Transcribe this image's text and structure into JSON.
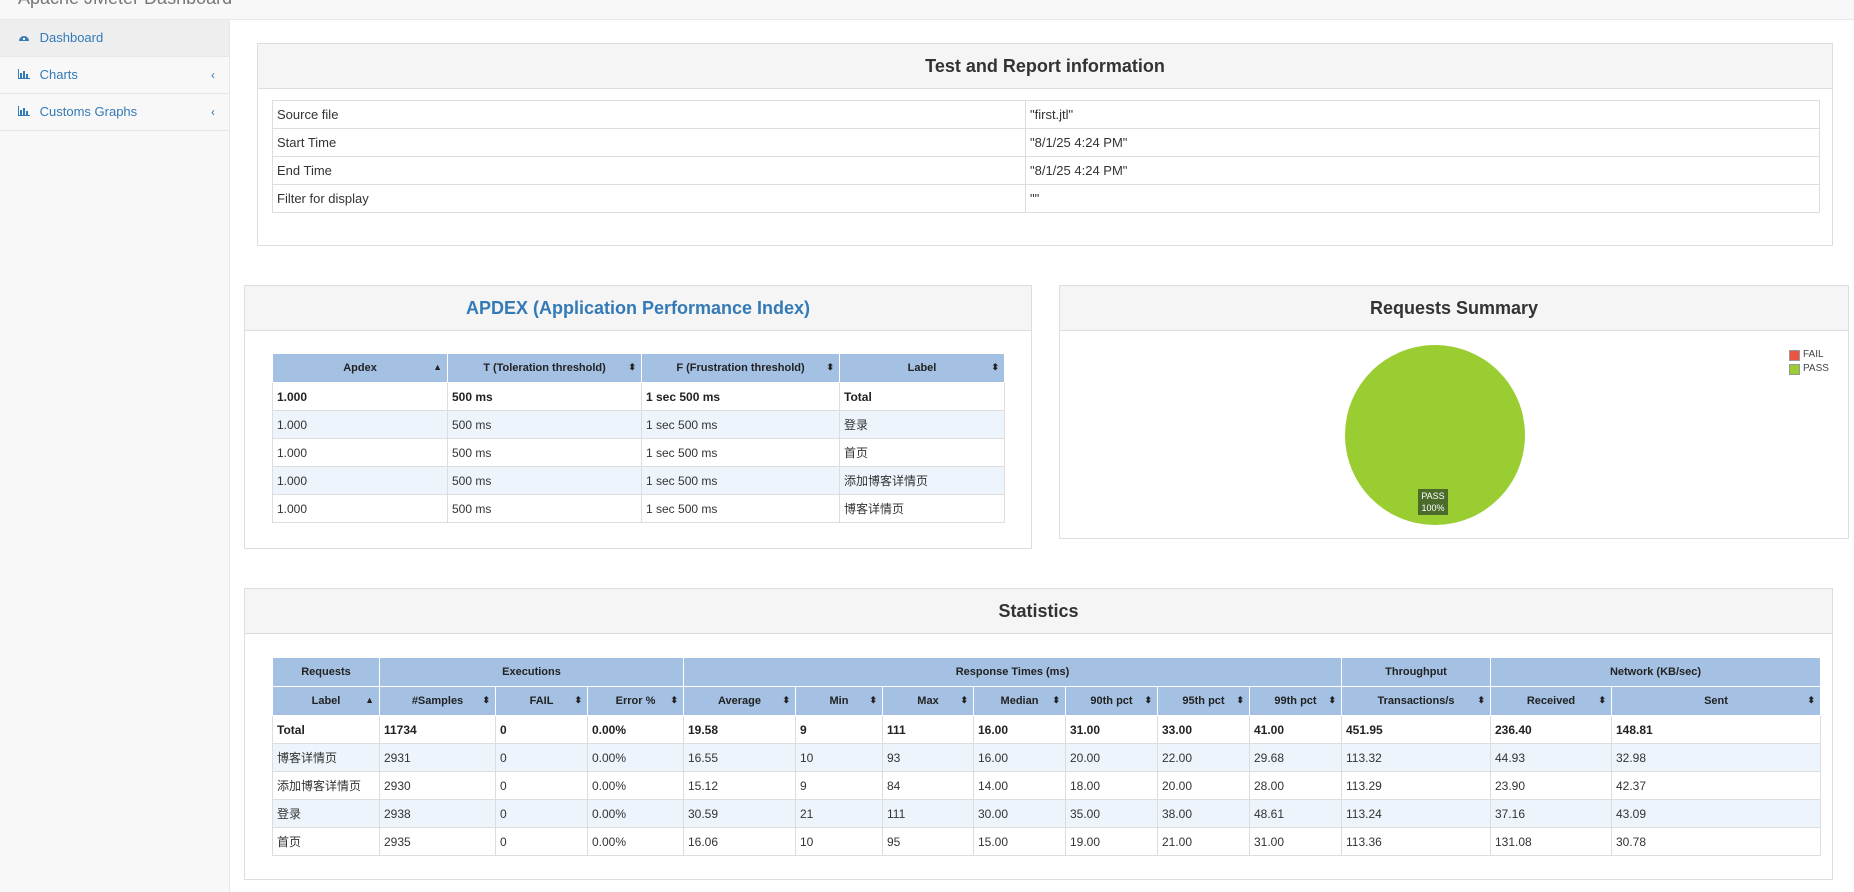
{
  "app": {
    "title": "Apache JMeter Dashboard"
  },
  "sidebar": {
    "items": [
      {
        "label": "Dashboard",
        "icon": "dashboard-icon"
      },
      {
        "label": "Charts",
        "icon": "bar-chart-icon"
      },
      {
        "label": "Customs Graphs",
        "icon": "bar-chart-icon"
      }
    ]
  },
  "test_info": {
    "title": "Test and Report information",
    "rows": [
      {
        "key": "Source file",
        "value": "\"first.jtl\""
      },
      {
        "key": "Start Time",
        "value": "\"8/1/25 4:24 PM\""
      },
      {
        "key": "End Time",
        "value": "\"8/1/25 4:24 PM\""
      },
      {
        "key": "Filter for display",
        "value": "\"\""
      }
    ]
  },
  "apdex": {
    "title": "APDEX (Application Performance Index)",
    "headers": [
      "Apdex",
      "T (Toleration threshold)",
      "F (Frustration threshold)",
      "Label"
    ],
    "rows": [
      [
        "1.000",
        "500 ms",
        "1 sec 500 ms",
        "Total"
      ],
      [
        "1.000",
        "500 ms",
        "1 sec 500 ms",
        "登录"
      ],
      [
        "1.000",
        "500 ms",
        "1 sec 500 ms",
        "首页"
      ],
      [
        "1.000",
        "500 ms",
        "1 sec 500 ms",
        "添加博客详情页"
      ],
      [
        "1.000",
        "500 ms",
        "1 sec 500 ms",
        "博客详情页"
      ]
    ]
  },
  "requests_summary": {
    "title": "Requests Summary",
    "pie_label_name": "PASS",
    "pie_label_pct": "100%",
    "colors": {
      "fail": "#e8563f",
      "pass": "#9acd32"
    }
  },
  "chart_data": {
    "type": "pie",
    "title": "Requests Summary",
    "categories": [
      "FAIL",
      "PASS"
    ],
    "values": [
      0,
      100
    ],
    "legend_position": "top-right"
  },
  "statistics": {
    "title": "Statistics",
    "groups": [
      "Requests",
      "Executions",
      "Response Times (ms)",
      "Throughput",
      "Network (KB/sec)"
    ],
    "headers": [
      "Label",
      "#Samples",
      "FAIL",
      "Error %",
      "Average",
      "Min",
      "Max",
      "Median",
      "90th pct",
      "95th pct",
      "99th pct",
      "Transactions/s",
      "Received",
      "Sent"
    ],
    "rows": [
      [
        "Total",
        "11734",
        "0",
        "0.00%",
        "19.58",
        "9",
        "111",
        "16.00",
        "31.00",
        "33.00",
        "41.00",
        "451.95",
        "236.40",
        "148.81"
      ],
      [
        "博客详情页",
        "2931",
        "0",
        "0.00%",
        "16.55",
        "10",
        "93",
        "16.00",
        "20.00",
        "22.00",
        "29.68",
        "113.32",
        "44.93",
        "32.98"
      ],
      [
        "添加博客详情页",
        "2930",
        "0",
        "0.00%",
        "15.12",
        "9",
        "84",
        "14.00",
        "18.00",
        "20.00",
        "28.00",
        "113.29",
        "23.90",
        "42.37"
      ],
      [
        "登录",
        "2938",
        "0",
        "0.00%",
        "30.59",
        "21",
        "111",
        "30.00",
        "35.00",
        "38.00",
        "48.61",
        "113.24",
        "37.16",
        "43.09"
      ],
      [
        "首页",
        "2935",
        "0",
        "0.00%",
        "16.06",
        "10",
        "95",
        "15.00",
        "19.00",
        "21.00",
        "31.00",
        "113.36",
        "131.08",
        "30.78"
      ]
    ]
  }
}
